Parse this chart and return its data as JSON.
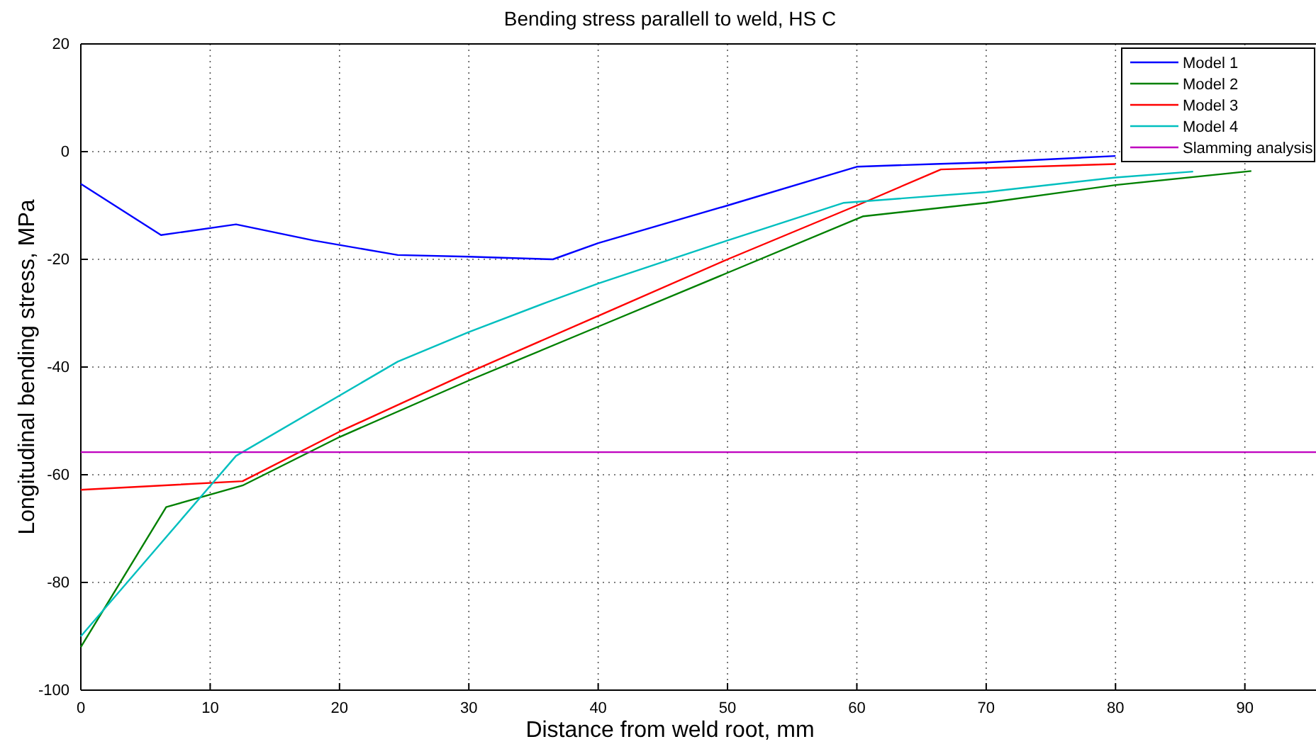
{
  "chart_data": {
    "type": "line",
    "title": "Bending stress parallell to weld, HS C",
    "xlabel": "Distance from weld root, mm",
    "ylabel": "Longitudinal bending stress, MPa",
    "xlim": [
      0,
      95.5
    ],
    "xticks": [
      0,
      10,
      20,
      30,
      40,
      50,
      60,
      70,
      80,
      90
    ],
    "ylim": [
      -100,
      20
    ],
    "yticks": [
      -100,
      -80,
      -60,
      -40,
      -20,
      0,
      20
    ],
    "grid": true,
    "legend": "top right",
    "line_style": "solid",
    "marker": "none",
    "series": [
      {
        "name": "Model 1",
        "color": "#0000ff",
        "x": [
          0,
          6.2,
          12,
          18,
          24.5,
          30,
          36.5,
          40,
          50,
          60,
          66,
          70,
          80
        ],
        "values": [
          -6,
          -15.5,
          -13.5,
          -16.5,
          -19.2,
          -19.5,
          -20,
          -17,
          -10,
          -2.8,
          -2.3,
          -2,
          -0.8
        ]
      },
      {
        "name": "Model 2",
        "color": "#008000",
        "x": [
          0,
          6.6,
          12.5,
          20,
          30,
          40,
          50,
          60.5,
          70,
          80,
          90.5
        ],
        "values": [
          -92,
          -66,
          -62,
          -53,
          -42.5,
          -32.5,
          -22.5,
          -12,
          -9.5,
          -6.2,
          -3.6
        ]
      },
      {
        "name": "Model 3",
        "color": "#ff0000",
        "x": [
          0,
          12.5,
          20,
          25,
          30,
          40,
          50,
          60,
          66.5,
          80
        ],
        "values": [
          -62.8,
          -61.2,
          -52,
          -46.5,
          -41,
          -30.5,
          -20,
          -10,
          -3.3,
          -2.3
        ]
      },
      {
        "name": "Model 4",
        "color": "#00bfbf",
        "x": [
          0,
          12,
          24.5,
          30,
          36,
          40,
          50,
          59,
          70,
          80,
          86
        ],
        "values": [
          -90,
          -56.5,
          -39,
          -33.5,
          -28,
          -24.5,
          -16.5,
          -9.5,
          -7.5,
          -4.8,
          -3.7
        ]
      },
      {
        "name": "Slamming analysis",
        "color": "#bf00bf",
        "x": [
          0,
          95.5
        ],
        "values": [
          -55.8,
          -55.8
        ]
      }
    ]
  }
}
